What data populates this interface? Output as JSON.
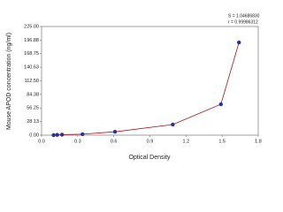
{
  "chart_data": {
    "type": "scatter",
    "x_label": "Optical Density",
    "y_label": "Mouse APOD concentration (ng/ml)",
    "annotations": [
      "S = 1.04686830",
      "r = 0.99986312"
    ],
    "series": [
      {
        "color": "#2e2e9e",
        "line_color": "#9b1c1c",
        "x": [
          0.1,
          0.13,
          0.17,
          0.34,
          0.61,
          1.09,
          1.49,
          1.64
        ],
        "values": [
          0,
          0.5,
          1,
          2,
          7,
          22,
          64,
          192
        ]
      }
    ],
    "xlim": [
      0,
      1.8
    ],
    "xticks": [
      {
        "value": 0,
        "label": "0.0"
      },
      0.3,
      0.6,
      0.9,
      1.2,
      1.5,
      1.8
    ],
    "ylim": [
      0,
      225
    ],
    "yticks": [
      {
        "value": 0,
        "label": "0.00"
      },
      {
        "value": 28.13,
        "label": "28.13"
      },
      {
        "value": 56.25,
        "label": "56.25"
      },
      {
        "value": 84.38,
        "label": "84.38"
      },
      {
        "value": 112.5,
        "label": "112.50"
      },
      {
        "value": 140.63,
        "label": "140.63"
      },
      {
        "value": 168.75,
        "label": "168.75"
      },
      {
        "value": 196.88,
        "label": "196.88"
      },
      {
        "value": 225,
        "label": "225.00"
      }
    ]
  }
}
